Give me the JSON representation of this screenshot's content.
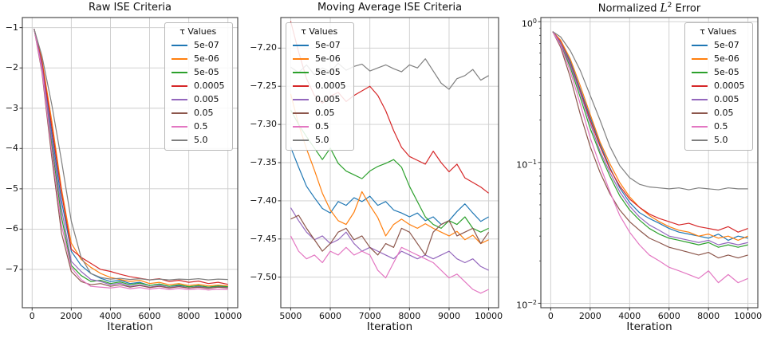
{
  "chart_data": [
    {
      "type": "line",
      "title": "Raw ISE Criteria",
      "xlabel": "Iteration",
      "xscale": "linear",
      "yscale": "linear",
      "xlim": [
        -500,
        10500
      ],
      "ylim": [
        -7.95,
        -0.75
      ],
      "grid": true,
      "axes_rect": [
        28,
        22,
        270,
        364
      ],
      "xticks": [
        0,
        2000,
        4000,
        6000,
        8000,
        10000
      ],
      "xtick_labels": [
        "0",
        "2000",
        "4000",
        "6000",
        "8000",
        "10000"
      ],
      "yticks": [
        -1,
        -2,
        -3,
        -4,
        -5,
        -6,
        -7
      ],
      "ytick_labels": [
        "−1",
        "−2",
        "−3",
        "−4",
        "−5",
        "−6",
        "−7"
      ],
      "legend": {
        "title": "τ Values",
        "position": "top-right"
      },
      "x": [
        100,
        500,
        1000,
        1500,
        2000,
        2500,
        3000,
        3500,
        4000,
        4500,
        5000,
        5500,
        6000,
        6500,
        7000,
        7500,
        8000,
        8500,
        9000,
        9500,
        10000
      ],
      "series": [
        {
          "name": "5e-07",
          "color": "#1f77b4",
          "y": [
            -1.03,
            -1.9,
            -3.6,
            -5.3,
            -6.55,
            -6.9,
            -7.1,
            -7.22,
            -7.3,
            -7.27,
            -7.35,
            -7.32,
            -7.4,
            -7.37,
            -7.42,
            -7.4,
            -7.43,
            -7.41,
            -7.44,
            -7.42,
            -7.43
          ]
        },
        {
          "name": "5e-06",
          "color": "#ff7f0e",
          "y": [
            -1.03,
            -1.8,
            -3.3,
            -5.0,
            -6.35,
            -6.75,
            -6.95,
            -7.1,
            -7.2,
            -7.25,
            -7.3,
            -7.27,
            -7.35,
            -7.32,
            -7.38,
            -7.35,
            -7.4,
            -7.37,
            -7.41,
            -7.39,
            -7.41
          ]
        },
        {
          "name": "5e-05",
          "color": "#2ca02c",
          "y": [
            -1.03,
            -2.0,
            -3.9,
            -5.7,
            -6.9,
            -7.15,
            -7.3,
            -7.27,
            -7.35,
            -7.31,
            -7.38,
            -7.34,
            -7.4,
            -7.36,
            -7.42,
            -7.38,
            -7.43,
            -7.4,
            -7.44,
            -7.41,
            -7.43
          ]
        },
        {
          "name": "0.0005",
          "color": "#d62728",
          "y": [
            -1.03,
            -1.85,
            -3.45,
            -5.1,
            -6.5,
            -6.7,
            -6.85,
            -7.0,
            -7.05,
            -7.12,
            -7.18,
            -7.22,
            -7.26,
            -7.23,
            -7.3,
            -7.27,
            -7.32,
            -7.29,
            -7.35,
            -7.32,
            -7.37
          ]
        },
        {
          "name": "0.005",
          "color": "#9467bd",
          "y": [
            -1.03,
            -1.95,
            -3.75,
            -5.5,
            -6.8,
            -7.05,
            -7.25,
            -7.3,
            -7.38,
            -7.34,
            -7.42,
            -7.38,
            -7.44,
            -7.4,
            -7.45,
            -7.42,
            -7.46,
            -7.43,
            -7.46,
            -7.44,
            -7.45
          ]
        },
        {
          "name": "0.05",
          "color": "#8c564b",
          "y": [
            -1.03,
            -2.1,
            -4.2,
            -6.1,
            -7.05,
            -7.3,
            -7.38,
            -7.35,
            -7.42,
            -7.38,
            -7.44,
            -7.4,
            -7.45,
            -7.42,
            -7.46,
            -7.43,
            -7.46,
            -7.44,
            -7.47,
            -7.44,
            -7.46
          ]
        },
        {
          "name": "0.5",
          "color": "#e377c2",
          "y": [
            -1.03,
            -2.05,
            -4.05,
            -5.9,
            -6.95,
            -7.25,
            -7.42,
            -7.44,
            -7.46,
            -7.43,
            -7.48,
            -7.45,
            -7.49,
            -7.46,
            -7.5,
            -7.47,
            -7.5,
            -7.48,
            -7.51,
            -7.49,
            -7.5
          ]
        },
        {
          "name": "5.0",
          "color": "#7f7f7f",
          "y": [
            -1.03,
            -1.7,
            -2.9,
            -4.3,
            -5.8,
            -6.7,
            -7.1,
            -7.2,
            -7.24,
            -7.22,
            -7.25,
            -7.23,
            -7.26,
            -7.24,
            -7.26,
            -7.24,
            -7.25,
            -7.23,
            -7.26,
            -7.24,
            -7.25
          ]
        }
      ]
    },
    {
      "type": "line",
      "title": "Moving Average ISE Criteria",
      "xlabel": "Iteration",
      "xscale": "linear",
      "yscale": "linear",
      "xlim": [
        4750,
        10250
      ],
      "ylim": [
        -7.54,
        -7.16
      ],
      "grid": true,
      "axes_rect": [
        352,
        22,
        273,
        364
      ],
      "xticks": [
        5000,
        6000,
        7000,
        8000,
        9000,
        10000
      ],
      "xtick_labels": [
        "5000",
        "6000",
        "7000",
        "8000",
        "9000",
        "10000"
      ],
      "yticks": [
        -7.2,
        -7.25,
        -7.3,
        -7.35,
        -7.4,
        -7.45,
        -7.5
      ],
      "ytick_labels": [
        "−7.20",
        "−7.25",
        "−7.30",
        "−7.35",
        "−7.40",
        "−7.45",
        "−7.50"
      ],
      "legend": {
        "title": "τ Values",
        "position": "top-left"
      },
      "x": [
        5000,
        5200,
        5400,
        5600,
        5800,
        6000,
        6200,
        6400,
        6600,
        6800,
        7000,
        7200,
        7400,
        7600,
        7800,
        8000,
        8200,
        8400,
        8600,
        8800,
        9000,
        9200,
        9400,
        9600,
        9800,
        10000
      ],
      "series": [
        {
          "name": "5e-07",
          "color": "#1f77b4",
          "y": [
            -7.33,
            -7.356,
            -7.381,
            -7.396,
            -7.41,
            -7.416,
            -7.401,
            -7.406,
            -7.396,
            -7.401,
            -7.394,
            -7.406,
            -7.401,
            -7.412,
            -7.416,
            -7.421,
            -7.416,
            -7.426,
            -7.421,
            -7.431,
            -7.426,
            -7.414,
            -7.404,
            -7.416,
            -7.427,
            -7.421
          ]
        },
        {
          "name": "5e-06",
          "color": "#ff7f0e",
          "y": [
            -7.26,
            -7.3,
            -7.332,
            -7.36,
            -7.39,
            -7.412,
            -7.426,
            -7.431,
            -7.415,
            -7.388,
            -7.406,
            -7.422,
            -7.446,
            -7.431,
            -7.424,
            -7.431,
            -7.436,
            -7.43,
            -7.436,
            -7.441,
            -7.446,
            -7.44,
            -7.451,
            -7.445,
            -7.456,
            -7.451
          ]
        },
        {
          "name": "5e-05",
          "color": "#2ca02c",
          "y": [
            -7.281,
            -7.3,
            -7.316,
            -7.331,
            -7.346,
            -7.331,
            -7.351,
            -7.361,
            -7.366,
            -7.371,
            -7.361,
            -7.355,
            -7.351,
            -7.346,
            -7.356,
            -7.381,
            -7.401,
            -7.421,
            -7.431,
            -7.436,
            -7.426,
            -7.431,
            -7.421,
            -7.436,
            -7.441,
            -7.436
          ]
        },
        {
          "name": "0.0005",
          "color": "#d62728",
          "y": [
            -7.165,
            -7.205,
            -7.24,
            -7.262,
            -7.272,
            -7.263,
            -7.258,
            -7.27,
            -7.262,
            -7.256,
            -7.25,
            -7.262,
            -7.282,
            -7.308,
            -7.33,
            -7.342,
            -7.347,
            -7.352,
            -7.335,
            -7.35,
            -7.362,
            -7.352,
            -7.37,
            -7.376,
            -7.382,
            -7.39
          ]
        },
        {
          "name": "0.005",
          "color": "#9467bd",
          "y": [
            -7.409,
            -7.426,
            -7.441,
            -7.451,
            -7.446,
            -7.456,
            -7.451,
            -7.441,
            -7.456,
            -7.466,
            -7.461,
            -7.466,
            -7.471,
            -7.476,
            -7.466,
            -7.471,
            -7.476,
            -7.471,
            -7.476,
            -7.471,
            -7.466,
            -7.476,
            -7.481,
            -7.476,
            -7.486,
            -7.491
          ]
        },
        {
          "name": "0.05",
          "color": "#8c564b",
          "y": [
            -7.424,
            -7.419,
            -7.436,
            -7.451,
            -7.466,
            -7.456,
            -7.441,
            -7.436,
            -7.451,
            -7.446,
            -7.461,
            -7.471,
            -7.456,
            -7.461,
            -7.436,
            -7.441,
            -7.456,
            -7.471,
            -7.441,
            -7.431,
            -7.426,
            -7.446,
            -7.441,
            -7.436,
            -7.456,
            -7.441
          ]
        },
        {
          "name": "0.5",
          "color": "#e377c2",
          "y": [
            -7.446,
            -7.466,
            -7.476,
            -7.471,
            -7.481,
            -7.466,
            -7.471,
            -7.461,
            -7.471,
            -7.466,
            -7.471,
            -7.491,
            -7.501,
            -7.481,
            -7.461,
            -7.466,
            -7.471,
            -7.476,
            -7.481,
            -7.491,
            -7.501,
            -7.496,
            -7.506,
            -7.516,
            -7.521,
            -7.516
          ]
        },
        {
          "name": "5.0",
          "color": "#7f7f7f",
          "y": [
            -7.225,
            -7.232,
            -7.222,
            -7.235,
            -7.226,
            -7.231,
            -7.22,
            -7.229,
            -7.224,
            -7.221,
            -7.23,
            -7.226,
            -7.222,
            -7.227,
            -7.231,
            -7.222,
            -7.226,
            -7.214,
            -7.23,
            -7.246,
            -7.254,
            -7.24,
            -7.236,
            -7.228,
            -7.242,
            -7.236
          ]
        }
      ]
    },
    {
      "type": "line",
      "title": "Normalized L² Error",
      "xlabel": "Iteration",
      "xscale": "linear",
      "yscale": "log",
      "xlim": [
        -500,
        10500
      ],
      "ylim": [
        0.0093,
        1.07
      ],
      "grid": true,
      "axes_rect": [
        678,
        22,
        272,
        364
      ],
      "xticks": [
        0,
        2000,
        4000,
        6000,
        8000,
        10000
      ],
      "xtick_labels": [
        "0",
        "2000",
        "4000",
        "6000",
        "8000",
        "10000"
      ],
      "yticks": [
        1,
        0.1,
        0.01
      ],
      "ytick_labels": [
        "10^0",
        "10^−1",
        "10^−2"
      ],
      "legend": {
        "title": "τ Values",
        "position": "top-right"
      },
      "x": [
        100,
        500,
        1000,
        1500,
        2000,
        2500,
        3000,
        3500,
        4000,
        4500,
        5000,
        5500,
        6000,
        6500,
        7000,
        7500,
        8000,
        8500,
        9000,
        9500,
        10000
      ],
      "series": [
        {
          "name": "5e-07",
          "color": "#1f77b4",
          "y": [
            0.85,
            0.73,
            0.52,
            0.33,
            0.21,
            0.135,
            0.092,
            0.066,
            0.052,
            0.044,
            0.04,
            0.037,
            0.034,
            0.032,
            0.031,
            0.03,
            0.029,
            0.031,
            0.028,
            0.03,
            0.029
          ]
        },
        {
          "name": "5e-06",
          "color": "#ff7f0e",
          "y": [
            0.85,
            0.74,
            0.54,
            0.35,
            0.22,
            0.14,
            0.098,
            0.072,
            0.057,
            0.048,
            0.042,
            0.038,
            0.035,
            0.033,
            0.032,
            0.03,
            0.031,
            0.029,
            0.03,
            0.028,
            0.03
          ]
        },
        {
          "name": "5e-05",
          "color": "#2ca02c",
          "y": [
            0.85,
            0.7,
            0.47,
            0.29,
            0.175,
            0.115,
            0.08,
            0.058,
            0.046,
            0.039,
            0.034,
            0.031,
            0.029,
            0.028,
            0.027,
            0.026,
            0.027,
            0.025,
            0.026,
            0.025,
            0.026
          ]
        },
        {
          "name": "0.0005",
          "color": "#d62728",
          "y": [
            0.85,
            0.72,
            0.5,
            0.32,
            0.2,
            0.13,
            0.09,
            0.068,
            0.055,
            0.048,
            0.043,
            0.04,
            0.038,
            0.036,
            0.037,
            0.035,
            0.034,
            0.033,
            0.035,
            0.032,
            0.034
          ]
        },
        {
          "name": "0.005",
          "color": "#9467bd",
          "y": [
            0.85,
            0.71,
            0.49,
            0.31,
            0.19,
            0.12,
            0.085,
            0.062,
            0.049,
            0.041,
            0.036,
            0.033,
            0.03,
            0.029,
            0.028,
            0.027,
            0.028,
            0.026,
            0.027,
            0.026,
            0.027
          ]
        },
        {
          "name": "0.05",
          "color": "#8c564b",
          "y": [
            0.85,
            0.66,
            0.4,
            0.22,
            0.13,
            0.085,
            0.06,
            0.046,
            0.038,
            0.033,
            0.029,
            0.027,
            0.025,
            0.024,
            0.023,
            0.022,
            0.023,
            0.021,
            0.022,
            0.021,
            0.022
          ]
        },
        {
          "name": "0.5",
          "color": "#e377c2",
          "y": [
            0.85,
            0.68,
            0.44,
            0.26,
            0.15,
            0.095,
            0.062,
            0.042,
            0.032,
            0.026,
            0.022,
            0.02,
            0.018,
            0.017,
            0.016,
            0.015,
            0.017,
            0.014,
            0.016,
            0.014,
            0.015
          ]
        },
        {
          "name": "5.0",
          "color": "#7f7f7f",
          "y": [
            0.85,
            0.78,
            0.62,
            0.45,
            0.3,
            0.2,
            0.13,
            0.095,
            0.078,
            0.07,
            0.067,
            0.066,
            0.065,
            0.066,
            0.064,
            0.066,
            0.065,
            0.064,
            0.066,
            0.065,
            0.065
          ]
        }
      ]
    }
  ],
  "style": {
    "grid_color": "#cccccc",
    "spine_color": "#3c3c3c",
    "tick_color": "#3c3c3c",
    "text_color": "#111111",
    "background": "#ffffff"
  }
}
